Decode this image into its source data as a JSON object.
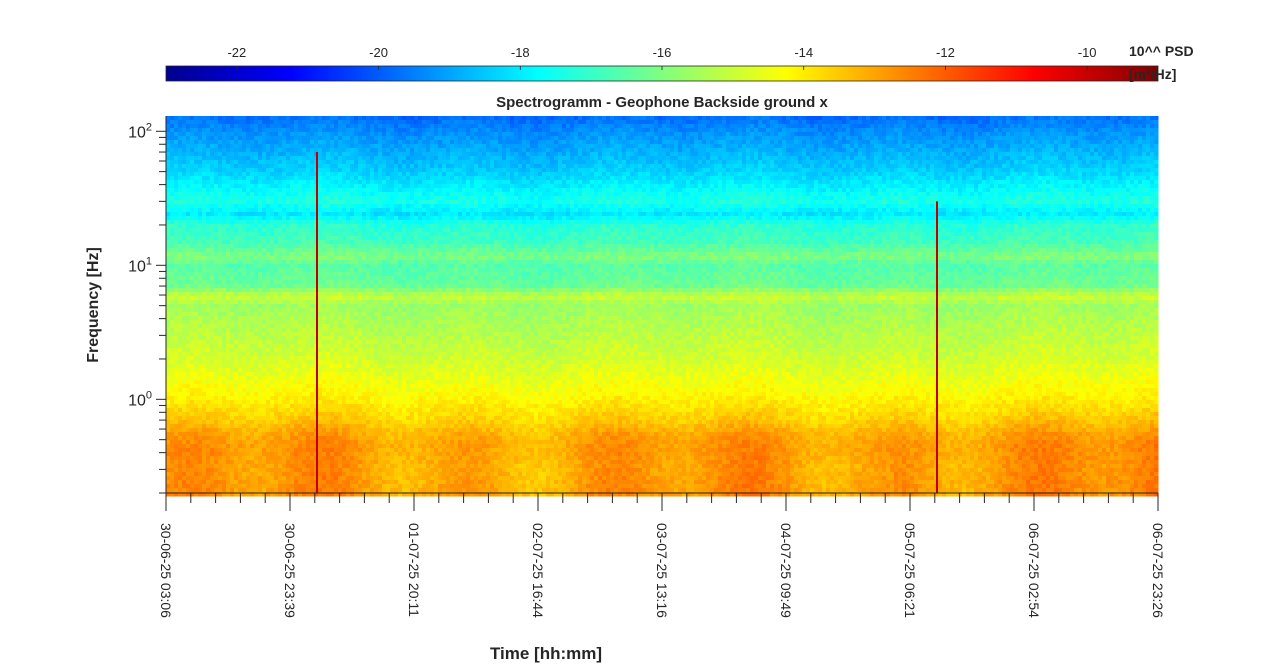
{
  "chart_data": {
    "type": "heatmap",
    "title": "Spectrogramm - Geophone Backside ground x",
    "xlabel": "Time [hh:mm]",
    "ylabel": "Frequency [Hz]",
    "y_scale": "log",
    "ylim": [
      0.2,
      130
    ],
    "y_ticks": [
      {
        "value": 1,
        "base": "10",
        "exp": "0"
      },
      {
        "value": 10,
        "base": "10",
        "exp": "1"
      },
      {
        "value": 100,
        "base": "10",
        "exp": "2"
      }
    ],
    "x_ticks": [
      "30-06-25 03:06",
      "30-06-25 23:39",
      "01-07-25 20:11",
      "02-07-25 16:44",
      "03-07-25 13:16",
      "04-07-25 09:49",
      "05-07-25 06:21",
      "06-07-25 02:54",
      "06-07-25 23:26"
    ],
    "colorbar": {
      "label_line1": "10^^ PSD",
      "label_line2": "[m²/Hz]",
      "range": [
        -23,
        -9
      ],
      "ticks": [
        "-22",
        "-20",
        "-18",
        "-16",
        "-14",
        "-12",
        "-10"
      ],
      "tick_values": [
        -22,
        -20,
        -18,
        -16,
        -14,
        -12,
        -10
      ],
      "colormap": "jet"
    },
    "level_profile": {
      "frequency_hz": [
        0.2,
        0.3,
        0.45,
        0.55,
        0.7,
        1,
        2,
        5,
        5.8,
        7,
        10,
        11.5,
        15,
        20,
        24,
        30,
        50,
        100,
        130
      ],
      "log10_psd": [
        -12.9,
        -13.0,
        -12.9,
        -13.1,
        -13.6,
        -14.1,
        -14.9,
        -15.6,
        -15.0,
        -16.3,
        -16.6,
        -16.0,
        -16.9,
        -17.2,
        -18.1,
        -17.4,
        -18.4,
        -19.3,
        -19.8
      ]
    },
    "events": [
      {
        "time": "30-06-25 23:39",
        "frequency_range_hz": [
          0.2,
          70
        ]
      },
      {
        "time": "05-07-25 06:21",
        "frequency_range_hz": [
          0.2,
          30
        ]
      }
    ]
  }
}
